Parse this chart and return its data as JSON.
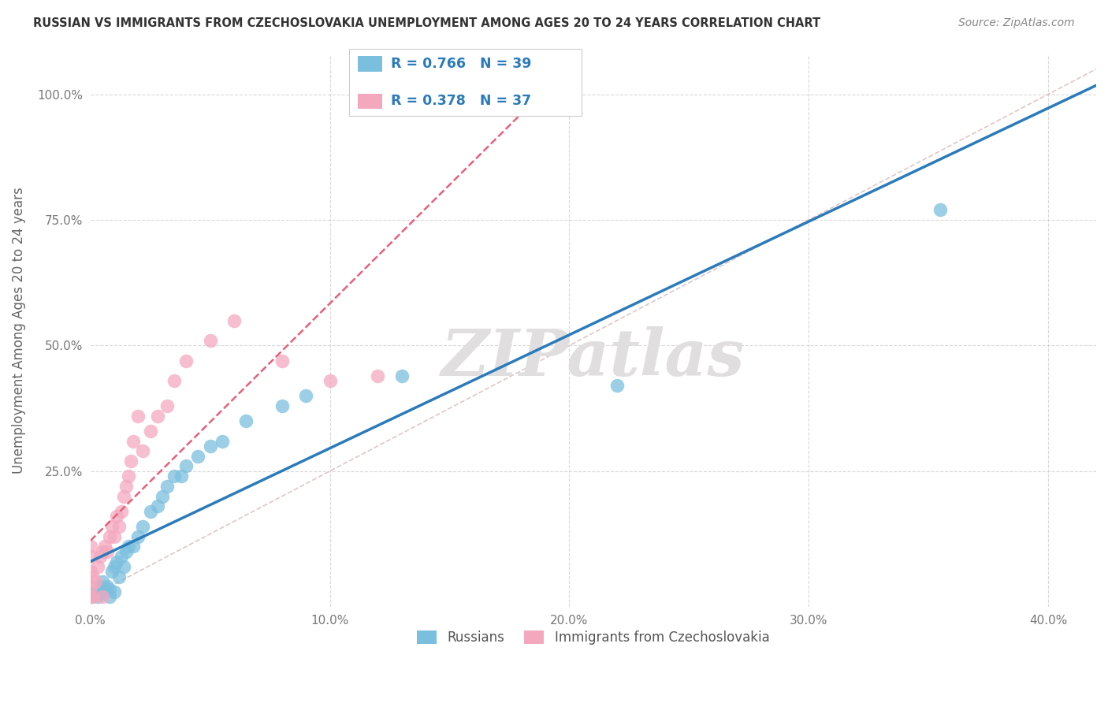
{
  "title": "RUSSIAN VS IMMIGRANTS FROM CZECHOSLOVAKIA UNEMPLOYMENT AMONG AGES 20 TO 24 YEARS CORRELATION CHART",
  "source": "Source: ZipAtlas.com",
  "ylabel": "Unemployment Among Ages 20 to 24 years",
  "xlim": [
    0.0,
    0.42
  ],
  "ylim": [
    -0.02,
    1.08
  ],
  "xticks": [
    0.0,
    0.1,
    0.2,
    0.3,
    0.4
  ],
  "xticklabels": [
    "0.0%",
    "10.0%",
    "20.0%",
    "30.0%",
    "40.0%"
  ],
  "ytick_positions": [
    0.0,
    0.25,
    0.5,
    0.75,
    1.0
  ],
  "yticklabels": [
    "",
    "25.0%",
    "50.0%",
    "75.0%",
    "100.0%"
  ],
  "russian_R": 0.766,
  "russian_N": 39,
  "czech_R": 0.378,
  "czech_N": 37,
  "legend_labels": [
    "Russians",
    "Immigrants from Czechoslovakia"
  ],
  "russian_color": "#7bbfde",
  "czech_color": "#f4a8be",
  "russian_line_color": "#2b7bba",
  "czech_line_color": "#e8607a",
  "background_color": "#ffffff",
  "grid_color": "#d0d0d0",
  "title_color": "#333333",
  "legend_text_color": "#2b7bba",
  "russian_scatter_x": [
    0.0,
    0.0,
    0.002,
    0.003,
    0.004,
    0.005,
    0.005,
    0.006,
    0.007,
    0.008,
    0.008,
    0.009,
    0.01,
    0.01,
    0.011,
    0.012,
    0.013,
    0.014,
    0.015,
    0.016,
    0.018,
    0.02,
    0.022,
    0.025,
    0.028,
    0.03,
    0.032,
    0.035,
    0.038,
    0.04,
    0.045,
    0.05,
    0.055,
    0.065,
    0.08,
    0.09,
    0.13,
    0.22,
    0.355
  ],
  "russian_scatter_y": [
    0.0,
    0.005,
    0.01,
    0.0,
    0.02,
    0.005,
    0.03,
    0.01,
    0.02,
    0.0,
    0.015,
    0.05,
    0.01,
    0.06,
    0.07,
    0.04,
    0.08,
    0.06,
    0.09,
    0.1,
    0.1,
    0.12,
    0.14,
    0.17,
    0.18,
    0.2,
    0.22,
    0.24,
    0.24,
    0.26,
    0.28,
    0.3,
    0.31,
    0.35,
    0.38,
    0.4,
    0.44,
    0.42,
    0.77
  ],
  "czech_scatter_x": [
    0.0,
    0.0,
    0.0,
    0.0,
    0.0,
    0.001,
    0.001,
    0.002,
    0.003,
    0.004,
    0.005,
    0.005,
    0.006,
    0.007,
    0.008,
    0.009,
    0.01,
    0.011,
    0.012,
    0.013,
    0.014,
    0.015,
    0.016,
    0.017,
    0.018,
    0.02,
    0.022,
    0.025,
    0.028,
    0.032,
    0.035,
    0.04,
    0.05,
    0.06,
    0.08,
    0.1,
    0.12
  ],
  "czech_scatter_y": [
    0.0,
    0.02,
    0.05,
    0.08,
    0.1,
    0.0,
    0.04,
    0.03,
    0.06,
    0.08,
    0.0,
    0.09,
    0.1,
    0.09,
    0.12,
    0.14,
    0.12,
    0.16,
    0.14,
    0.17,
    0.2,
    0.22,
    0.24,
    0.27,
    0.31,
    0.36,
    0.29,
    0.33,
    0.36,
    0.38,
    0.43,
    0.47,
    0.51,
    0.55,
    0.47,
    0.43,
    0.44
  ],
  "diag_line_color": "#d0b0b0",
  "watermark_color": "#e0dede"
}
